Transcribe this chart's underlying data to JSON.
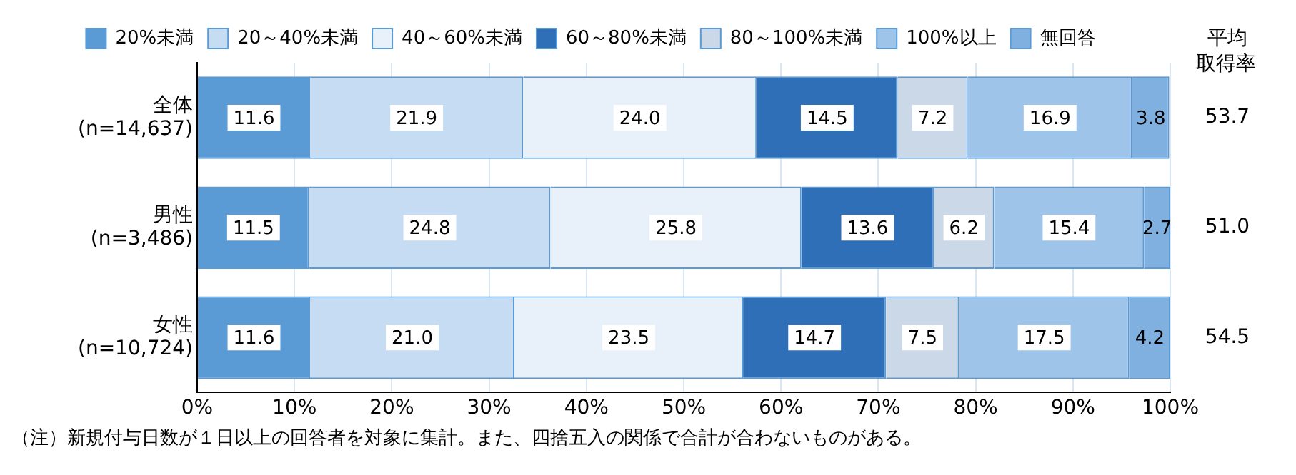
{
  "chart_data": {
    "type": "bar",
    "orientation": "horizontal",
    "stacked": true,
    "categories": [
      "全体\n(n=14,637)",
      "男性\n(n=3,486)",
      "女性\n(n=10,724)"
    ],
    "series": [
      {
        "name": "20%未満",
        "color": "#5b9bd5",
        "values": [
          11.6,
          11.5,
          11.6
        ],
        "value_labels": [
          "11.6",
          "11.5",
          "11.6"
        ]
      },
      {
        "name": "20～40%未満",
        "color": "#c5dcf2",
        "values": [
          21.9,
          24.8,
          21.0
        ],
        "value_labels": [
          "21.9",
          "24.8",
          "21.0"
        ]
      },
      {
        "name": "40～60%未満",
        "color": "#e8f1fa",
        "values": [
          24.0,
          25.8,
          23.5
        ],
        "value_labels": [
          "24.0",
          "25.8",
          "23.5"
        ]
      },
      {
        "name": "60～80%未満",
        "color": "#2f6fb8",
        "values": [
          14.5,
          13.6,
          14.7
        ],
        "value_labels": [
          "14.5",
          "13.6",
          "14.7"
        ]
      },
      {
        "name": "80～100%未満",
        "color": "#cbd8e8",
        "values": [
          7.2,
          6.2,
          7.5
        ],
        "value_labels": [
          "7.2",
          "6.2",
          "7.5"
        ]
      },
      {
        "name": "100%以上",
        "color": "#9ec4ea",
        "values": [
          16.9,
          15.4,
          17.5
        ],
        "value_labels": [
          "16.9",
          "15.4",
          "17.5"
        ]
      },
      {
        "name": "無回答",
        "color": "#7fb0e0",
        "values": [
          3.8,
          2.7,
          4.2
        ],
        "value_labels": [
          "3.8",
          "2.7",
          "4.2"
        ]
      }
    ],
    "xlim": [
      0,
      100
    ],
    "xticks": [
      {
        "value": 0,
        "label": "0%"
      },
      {
        "value": 10,
        "label": "10%"
      },
      {
        "value": 20,
        "label": "20%"
      },
      {
        "value": 30,
        "label": "30%"
      },
      {
        "value": 40,
        "label": "40%"
      },
      {
        "value": 50,
        "label": "50%"
      },
      {
        "value": 60,
        "label": "60%"
      },
      {
        "value": 70,
        "label": "70%"
      },
      {
        "value": 80,
        "label": "80%"
      },
      {
        "value": 90,
        "label": "90%"
      },
      {
        "value": 100,
        "label": "100%"
      }
    ],
    "grid": "x",
    "legend": "top",
    "annotations": [
      "平均取得率",
      "53.7",
      "51.0",
      "54.5",
      "（注）新規付与日数が１日以上の回答者を対象に集計。また、四捨五入の関係で合計が合わないものがある。"
    ]
  }
}
